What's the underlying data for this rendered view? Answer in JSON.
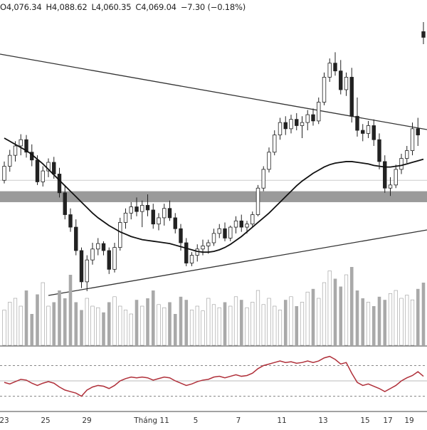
{
  "legend": {
    "open_text": "O4,076.34",
    "high_text": "H4,088.62",
    "low_text": "L4,060.35",
    "close_text": "C4,069.04",
    "change_text": "−7.30 (−0.18%)"
  },
  "colors": {
    "up": "#ffffff",
    "down": "#222222",
    "wick": "#222222",
    "ma": "#111111",
    "trendline": "#333333",
    "support_zone": "#8f8f8f",
    "vol_up": "#ffffff",
    "vol_down": "#a9a9a9",
    "rsi": "#b0303a",
    "grid": "#d6d6d6",
    "rsi_band": "#888888"
  },
  "chart_data": {
    "type": "candlestick",
    "x_ticks": [
      "23",
      "25",
      "29",
      "Tháng 11",
      "5",
      "7",
      "11",
      "13",
      "15",
      "17",
      "19"
    ],
    "title": "",
    "xlabel": "",
    "ylabel": "",
    "last_bar": {
      "open": 4076.34,
      "high": 4088.62,
      "low": 4060.35,
      "close": 4069.04,
      "change": -7.3,
      "change_pct": -0.18
    },
    "series": [
      {
        "name": "price",
        "values_ohlc_estimated": [
          [
            3886,
            3910,
            3882,
            3904
          ],
          [
            3904,
            3925,
            3897,
            3918
          ],
          [
            3918,
            3936,
            3910,
            3930
          ],
          [
            3930,
            3945,
            3918,
            3938
          ],
          [
            3938,
            3944,
            3915,
            3922
          ],
          [
            3922,
            3932,
            3904,
            3912
          ],
          [
            3912,
            3918,
            3880,
            3884
          ],
          [
            3884,
            3904,
            3878,
            3898
          ],
          [
            3898,
            3914,
            3890,
            3909
          ],
          [
            3909,
            3916,
            3888,
            3894
          ],
          [
            3894,
            3902,
            3864,
            3870
          ],
          [
            3870,
            3880,
            3836,
            3842
          ],
          [
            3842,
            3850,
            3820,
            3826
          ],
          [
            3826,
            3836,
            3790,
            3796
          ],
          [
            3796,
            3800,
            3748,
            3756
          ],
          [
            3756,
            3790,
            3744,
            3784
          ],
          [
            3784,
            3806,
            3778,
            3798
          ],
          [
            3798,
            3812,
            3790,
            3805
          ],
          [
            3805,
            3808,
            3790,
            3796
          ],
          [
            3796,
            3800,
            3766,
            3772
          ],
          [
            3772,
            3806,
            3768,
            3800
          ],
          [
            3800,
            3838,
            3796,
            3832
          ],
          [
            3832,
            3850,
            3824,
            3844
          ],
          [
            3844,
            3858,
            3836,
            3852
          ],
          [
            3852,
            3864,
            3840,
            3846
          ],
          [
            3846,
            3860,
            3826,
            3854
          ],
          [
            3854,
            3868,
            3840,
            3848
          ],
          [
            3848,
            3856,
            3824,
            3830
          ],
          [
            3830,
            3844,
            3822,
            3838
          ],
          [
            3838,
            3856,
            3828,
            3850
          ],
          [
            3850,
            3860,
            3834,
            3838
          ],
          [
            3838,
            3844,
            3818,
            3824
          ],
          [
            3824,
            3830,
            3796,
            3806
          ],
          [
            3806,
            3812,
            3776,
            3780
          ],
          [
            3780,
            3794,
            3776,
            3790
          ],
          [
            3790,
            3804,
            3782,
            3798
          ],
          [
            3798,
            3810,
            3790,
            3802
          ],
          [
            3802,
            3810,
            3792,
            3806
          ],
          [
            3806,
            3824,
            3802,
            3818
          ],
          [
            3818,
            3830,
            3812,
            3824
          ],
          [
            3824,
            3832,
            3808,
            3812
          ],
          [
            3812,
            3828,
            3808,
            3826
          ],
          [
            3826,
            3840,
            3818,
            3834
          ],
          [
            3834,
            3842,
            3820,
            3826
          ],
          [
            3826,
            3834,
            3818,
            3830
          ],
          [
            3830,
            3846,
            3826,
            3842
          ],
          [
            3842,
            3880,
            3840,
            3876
          ],
          [
            3876,
            3904,
            3872,
            3900
          ],
          [
            3900,
            3928,
            3896,
            3922
          ],
          [
            3922,
            3950,
            3918,
            3944
          ],
          [
            3944,
            3966,
            3938,
            3960
          ],
          [
            3960,
            3968,
            3944,
            3952
          ],
          [
            3952,
            3970,
            3946,
            3964
          ],
          [
            3964,
            3972,
            3950,
            3956
          ],
          [
            3956,
            3968,
            3940,
            3960
          ],
          [
            3960,
            3976,
            3950,
            3970
          ],
          [
            3970,
            3978,
            3956,
            3962
          ],
          [
            3962,
            3992,
            3958,
            3986
          ],
          [
            3986,
            4024,
            3982,
            4018
          ],
          [
            4018,
            4042,
            4012,
            4036
          ],
          [
            4036,
            4050,
            4020,
            4026
          ],
          [
            4026,
            4040,
            3996,
            4002
          ],
          [
            4002,
            4024,
            3994,
            4018
          ],
          [
            4018,
            4030,
            3960,
            3968
          ],
          [
            3968,
            3992,
            3942,
            3950
          ],
          [
            3950,
            3958,
            3936,
            3946
          ],
          [
            3946,
            3962,
            3940,
            3956
          ],
          [
            3956,
            3964,
            3930,
            3938
          ],
          [
            3938,
            3946,
            3900,
            3910
          ],
          [
            3910,
            3918,
            3870,
            3876
          ],
          [
            3876,
            3890,
            3866,
            3880
          ],
          [
            3880,
            3906,
            3876,
            3900
          ],
          [
            3900,
            3920,
            3894,
            3914
          ],
          [
            3914,
            3930,
            3908,
            3924
          ],
          [
            3924,
            3960,
            3918,
            3952
          ],
          [
            3952,
            3966,
            3930,
            3944
          ],
          [
            4076.34,
            4088.62,
            4060.35,
            4069.04
          ]
        ]
      },
      {
        "name": "moving_average",
        "values_estimated": [
          3940,
          3936,
          3932,
          3928,
          3924,
          3919,
          3913,
          3907,
          3900,
          3893,
          3886,
          3879,
          3872,
          3865,
          3858,
          3851,
          3844,
          3838,
          3833,
          3828,
          3824,
          3820,
          3817,
          3814,
          3812,
          3810,
          3809,
          3808,
          3807,
          3806,
          3805,
          3803,
          3801,
          3799,
          3797,
          3795,
          3794,
          3794,
          3795,
          3797,
          3800,
          3804,
          3809,
          3814,
          3820,
          3826,
          3832,
          3838,
          3844,
          3851,
          3858,
          3865,
          3872,
          3879,
          3885,
          3890,
          3895,
          3899,
          3903,
          3906,
          3908,
          3909,
          3910,
          3910,
          3909,
          3908,
          3907,
          3905,
          3904,
          3903,
          3903,
          3904,
          3905,
          3907,
          3909,
          3911,
          3913
        ]
      },
      {
        "name": "volume",
        "values_estimated": [
          0.45,
          0.55,
          0.6,
          0.5,
          0.7,
          0.4,
          0.65,
          0.8,
          0.5,
          0.55,
          0.7,
          0.6,
          0.9,
          0.55,
          0.45,
          0.6,
          0.5,
          0.48,
          0.42,
          0.55,
          0.62,
          0.5,
          0.45,
          0.4,
          0.58,
          0.5,
          0.6,
          0.7,
          0.52,
          0.48,
          0.55,
          0.4,
          0.62,
          0.58,
          0.45,
          0.5,
          0.44,
          0.6,
          0.52,
          0.48,
          0.55,
          0.5,
          0.62,
          0.58,
          0.48,
          0.55,
          0.7,
          0.52,
          0.6,
          0.5,
          0.45,
          0.58,
          0.62,
          0.5,
          0.55,
          0.68,
          0.72,
          0.6,
          0.8,
          0.95,
          0.85,
          0.75,
          0.9,
          1.0,
          0.7,
          0.6,
          0.55,
          0.5,
          0.62,
          0.58,
          0.66,
          0.7,
          0.6,
          0.64,
          0.58,
          0.72,
          0.8
        ]
      },
      {
        "name": "rsi",
        "values_estimated": [
          48,
          46,
          49,
          52,
          51,
          47,
          44,
          47,
          49,
          47,
          42,
          38,
          36,
          34,
          30,
          38,
          42,
          44,
          43,
          40,
          44,
          50,
          53,
          55,
          54,
          55,
          54,
          51,
          53,
          55,
          54,
          50,
          47,
          44,
          46,
          49,
          51,
          52,
          55,
          56,
          54,
          56,
          58,
          56,
          57,
          60,
          66,
          70,
          72,
          74,
          76,
          74,
          75,
          73,
          74,
          76,
          74,
          76,
          80,
          82,
          78,
          72,
          74,
          60,
          48,
          44,
          46,
          43,
          40,
          36,
          40,
          44,
          50,
          54,
          57,
          62,
          56
        ]
      }
    ],
    "rsi_bands": [
      30,
      70
    ]
  }
}
